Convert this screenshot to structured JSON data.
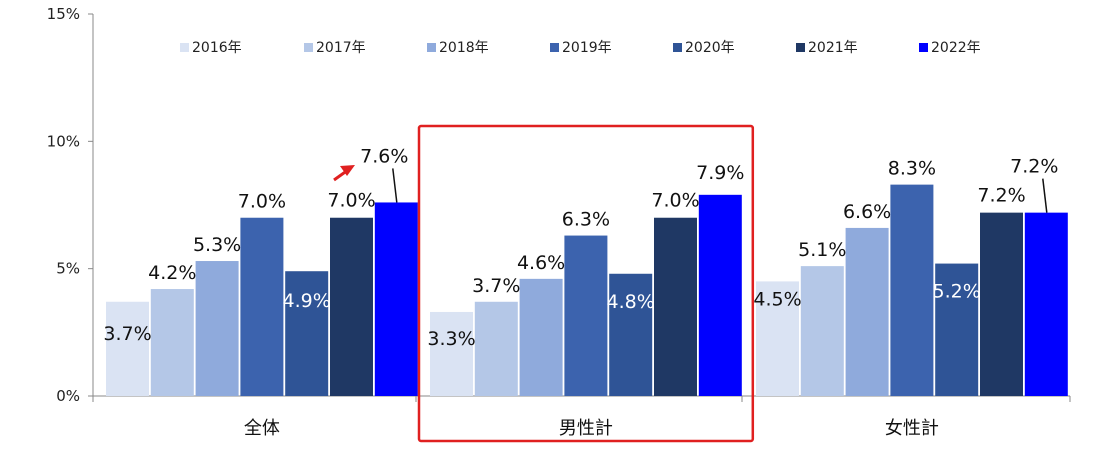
{
  "chart_data": {
    "type": "bar",
    "title": "",
    "xlabel": "",
    "ylabel": "",
    "ylim": [
      0,
      15
    ],
    "yticks": [
      "0%",
      "5%",
      "10%",
      "15%"
    ],
    "ytick_values": [
      0,
      5,
      10,
      15
    ],
    "grid": false,
    "legend_position": "top",
    "categories": [
      "全体",
      "男性計",
      "女性計"
    ],
    "series": [
      {
        "name": "2016年",
        "color": "#dae3f3",
        "values": [
          3.7,
          3.3,
          4.5
        ],
        "labels": [
          "3.7%",
          "3.3%",
          "4.5%"
        ]
      },
      {
        "name": "2017年",
        "color": "#b4c7e7",
        "values": [
          4.2,
          3.7,
          5.1
        ],
        "labels": [
          "4.2%",
          "3.7%",
          "5.1%"
        ]
      },
      {
        "name": "2018年",
        "color": "#8faadc",
        "values": [
          5.3,
          4.6,
          6.6
        ],
        "labels": [
          "5.3%",
          "4.6%",
          "6.6%"
        ]
      },
      {
        "name": "2019年",
        "color": "#3c63ae",
        "values": [
          7.0,
          6.3,
          8.3
        ],
        "labels": [
          "7.0%",
          "6.3%",
          "8.3%"
        ]
      },
      {
        "name": "2020年",
        "color": "#2f5496",
        "values": [
          4.9,
          4.8,
          5.2
        ],
        "labels": [
          "4.9%",
          "4.8%",
          "5.2%"
        ]
      },
      {
        "name": "2021年",
        "color": "#1f3864",
        "values": [
          7.0,
          7.0,
          7.2
        ],
        "labels": [
          "7.0%",
          "7.0%",
          "7.2%"
        ]
      },
      {
        "name": "2022年",
        "color": "#0000ff",
        "values": [
          7.6,
          7.9,
          7.2
        ],
        "labels": [
          "7.6%",
          "7.9%",
          "7.2%"
        ]
      }
    ],
    "highlight_category": "男性計",
    "highlight_color": "#e02020",
    "arrow_color": "#e02020"
  }
}
